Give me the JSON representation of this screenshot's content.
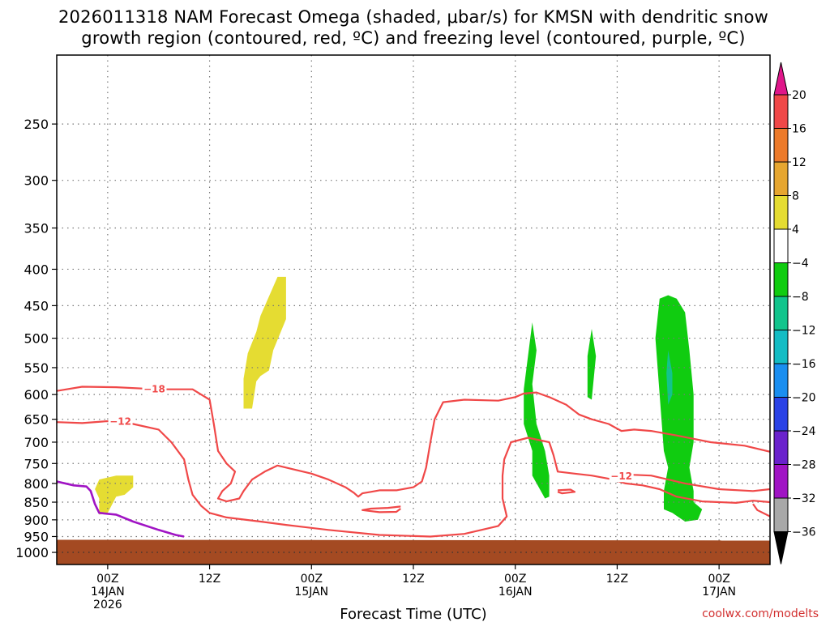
{
  "chart_data": {
    "type": "heatmap",
    "title_lines": [
      "2026011318 NAM Forecast Omega (shaded, μbar/s) for KMSN with dendritic snow",
      "growth region (contoured, red, ºC) and freezing level (contoured, purple, ºC)"
    ],
    "xlabel": "Forecast Time (UTC)",
    "ylabel": "",
    "credit": "coolwx.com/modelts",
    "x_unit": "forecast hours from 2026-01-13 18Z",
    "xlim": [
      0,
      84
    ],
    "ylim_hPa": [
      1040,
      200
    ],
    "y_scale": "log-pressure (inverted)",
    "y_ticks": [
      250,
      300,
      350,
      400,
      450,
      500,
      550,
      600,
      650,
      700,
      750,
      800,
      850,
      900,
      950,
      1000
    ],
    "x_ticks": [
      {
        "x": 6,
        "lines": [
          "00Z",
          "14JAN",
          "2026"
        ]
      },
      {
        "x": 18,
        "lines": [
          "12Z"
        ]
      },
      {
        "x": 30,
        "lines": [
          "00Z",
          "15JAN"
        ]
      },
      {
        "x": 42,
        "lines": [
          "12Z"
        ]
      },
      {
        "x": 54,
        "lines": [
          "00Z",
          "16JAN"
        ]
      },
      {
        "x": 66,
        "lines": [
          "12Z"
        ]
      },
      {
        "x": 78,
        "lines": [
          "00Z",
          "17JAN"
        ]
      }
    ],
    "grid": true,
    "colorbar": {
      "position": "right",
      "labels": [
        "20",
        "16",
        "12",
        "8",
        "4",
        "−4",
        "−8",
        "−12",
        "−16",
        "−20",
        "−24",
        "−28",
        "−32",
        "−36"
      ],
      "bins": [
        {
          "range": [
            20,
            99
          ],
          "color": "#e0168a"
        },
        {
          "range": [
            16,
            20
          ],
          "color": "#f04848"
        },
        {
          "range": [
            12,
            16
          ],
          "color": "#ec7a2a"
        },
        {
          "range": [
            8,
            12
          ],
          "color": "#e6a630"
        },
        {
          "range": [
            4,
            8
          ],
          "color": "#e5dc32"
        },
        {
          "range": [
            -4,
            4
          ],
          "color": "#ffffff"
        },
        {
          "range": [
            -8,
            -4
          ],
          "color": "#10cc10"
        },
        {
          "range": [
            -12,
            -8
          ],
          "color": "#12c48c"
        },
        {
          "range": [
            -16,
            -12
          ],
          "color": "#14bcc4"
        },
        {
          "range": [
            -20,
            -16
          ],
          "color": "#1a8ef0"
        },
        {
          "range": [
            -24,
            -20
          ],
          "color": "#2a42e6"
        },
        {
          "range": [
            -28,
            -24
          ],
          "color": "#6a22cc"
        },
        {
          "range": [
            -32,
            -28
          ],
          "color": "#a014c4"
        },
        {
          "range": [
            -36,
            -32
          ],
          "color": "#a8a8a8"
        },
        {
          "range": [
            -99,
            -36
          ],
          "color": "#000000"
        }
      ]
    },
    "terrain_color": "#a44a22",
    "terrain_top_hPa": [
      [
        0,
        960
      ],
      [
        84,
        962
      ]
    ],
    "omega_regions": [
      {
        "value": 6,
        "color": "#e5dc32",
        "points": [
          [
            5,
            790
          ],
          [
            7,
            780
          ],
          [
            9,
            780
          ],
          [
            9,
            810
          ],
          [
            8,
            830
          ],
          [
            7,
            835
          ],
          [
            6,
            880
          ],
          [
            5,
            885
          ],
          [
            5,
            840
          ],
          [
            4.5,
            815
          ]
        ]
      },
      {
        "value": 6,
        "color": "#e5dc32",
        "points": [
          [
            26,
            410
          ],
          [
            27,
            410
          ],
          [
            27,
            470
          ],
          [
            25.5,
            520
          ],
          [
            25,
            555
          ],
          [
            24,
            565
          ],
          [
            23.5,
            575
          ],
          [
            23,
            628
          ],
          [
            22,
            628
          ],
          [
            22,
            570
          ],
          [
            22.5,
            525
          ],
          [
            23.5,
            490
          ],
          [
            24,
            465
          ]
        ]
      },
      {
        "value": -6,
        "color": "#10cc10",
        "points": [
          [
            56,
            475
          ],
          [
            56.5,
            520
          ],
          [
            56,
            580
          ],
          [
            56.5,
            660
          ],
          [
            57.5,
            720
          ],
          [
            58,
            780
          ],
          [
            58,
            835
          ],
          [
            57.5,
            840
          ],
          [
            56,
            780
          ],
          [
            56,
            720
          ],
          [
            55,
            660
          ],
          [
            55,
            590
          ],
          [
            55.5,
            530
          ]
        ]
      },
      {
        "value": -6,
        "color": "#10cc10",
        "points": [
          [
            63,
            485
          ],
          [
            63.5,
            530
          ],
          [
            63,
            610
          ],
          [
            62.5,
            605
          ],
          [
            62.5,
            530
          ]
        ]
      },
      {
        "value": -6,
        "color": "#10cc10",
        "points": [
          [
            73,
            440
          ],
          [
            74,
            460
          ],
          [
            74.5,
            520
          ],
          [
            75,
            600
          ],
          [
            75,
            700
          ],
          [
            74.5,
            760
          ],
          [
            75,
            820
          ],
          [
            75,
            850
          ],
          [
            76,
            870
          ],
          [
            75.5,
            900
          ],
          [
            74,
            905
          ],
          [
            72.5,
            880
          ],
          [
            71.5,
            870
          ],
          [
            71.5,
            820
          ],
          [
            72,
            760
          ],
          [
            71.5,
            720
          ],
          [
            71,
            600
          ],
          [
            70.5,
            500
          ],
          [
            71,
            440
          ],
          [
            72,
            435
          ]
        ]
      },
      {
        "value": -10,
        "color": "#12c48c",
        "points": [
          [
            72,
            520
          ],
          [
            72.5,
            560
          ],
          [
            72.5,
            600
          ],
          [
            72,
            620
          ],
          [
            71.8,
            560
          ]
        ]
      }
    ],
    "temperature_contours": [
      {
        "label": "-18",
        "color": "#f04848",
        "label_at": [
          11.5,
          590
        ],
        "points": [
          [
            0,
            593
          ],
          [
            3,
            585
          ],
          [
            7,
            586
          ],
          [
            12,
            590
          ],
          [
            16,
            590
          ],
          [
            18,
            610
          ],
          [
            18.5,
            660
          ],
          [
            19,
            720
          ],
          [
            20,
            750
          ],
          [
            21,
            770
          ],
          [
            20.5,
            800
          ],
          [
            19.5,
            820
          ],
          [
            19,
            840
          ],
          [
            20,
            848
          ],
          [
            21.5,
            840
          ],
          [
            22,
            820
          ],
          [
            23,
            790
          ],
          [
            24.5,
            770
          ],
          [
            26,
            755
          ],
          [
            28,
            765
          ],
          [
            30,
            775
          ],
          [
            32,
            790
          ],
          [
            34,
            810
          ],
          [
            35,
            825
          ],
          [
            35.5,
            835
          ],
          [
            36,
            826
          ],
          [
            37,
            822
          ],
          [
            38,
            818
          ],
          [
            40,
            818
          ],
          [
            42,
            810
          ],
          [
            43,
            795
          ],
          [
            43.5,
            760
          ],
          [
            44,
            700
          ],
          [
            44.5,
            650
          ],
          [
            45.5,
            615
          ],
          [
            48,
            610
          ],
          [
            52,
            612
          ],
          [
            54,
            605
          ],
          [
            55,
            598
          ],
          [
            56.5,
            596
          ],
          [
            58,
            605
          ],
          [
            60,
            620
          ],
          [
            61.5,
            640
          ],
          [
            63,
            650
          ],
          [
            65,
            660
          ],
          [
            66.5,
            675
          ],
          [
            68,
            672
          ],
          [
            70,
            675
          ],
          [
            73,
            685
          ],
          [
            77,
            700
          ],
          [
            81,
            708
          ],
          [
            84,
            722
          ]
        ]
      },
      {
        "label": "-12",
        "color": "#f04848",
        "label_at": [
          7.5,
          655
        ],
        "points": [
          [
            0,
            656
          ],
          [
            3,
            658
          ],
          [
            6,
            654
          ],
          [
            9,
            660
          ],
          [
            12,
            672
          ],
          [
            13.5,
            700
          ],
          [
            15,
            740
          ],
          [
            15.5,
            790
          ],
          [
            16,
            830
          ],
          [
            17,
            860
          ],
          [
            18,
            880
          ],
          [
            20,
            893
          ],
          [
            24,
            905
          ],
          [
            27,
            915
          ],
          [
            32,
            930
          ],
          [
            38,
            945
          ],
          [
            44,
            950
          ],
          [
            48,
            942
          ],
          [
            52,
            918
          ],
          [
            53,
            890
          ],
          [
            52.5,
            840
          ],
          [
            52.5,
            780
          ],
          [
            52.7,
            740
          ],
          [
            53.5,
            700
          ],
          [
            55.5,
            690
          ],
          [
            58,
            700
          ],
          [
            58.5,
            730
          ],
          [
            59,
            770
          ],
          [
            61,
            775
          ],
          [
            63,
            780
          ],
          [
            65,
            788
          ],
          [
            67,
            800
          ],
          [
            69,
            805
          ],
          [
            71,
            815
          ],
          [
            73,
            835
          ],
          [
            76,
            848
          ],
          [
            80,
            852
          ],
          [
            82,
            846
          ],
          [
            84,
            850
          ]
        ]
      },
      {
        "label": "-12",
        "color": "#f04848",
        "label_at": [
          66.5,
          782
        ],
        "points": [
          [
            66,
            775
          ],
          [
            68,
            778
          ],
          [
            70,
            780
          ],
          [
            72,
            790
          ],
          [
            74,
            800
          ],
          [
            78,
            815
          ],
          [
            82,
            820
          ],
          [
            84,
            815
          ]
        ]
      },
      {
        "label": "",
        "color": "#f04848",
        "points": [
          [
            40.5,
            862
          ],
          [
            39,
            866
          ],
          [
            37,
            868
          ],
          [
            36,
            872
          ],
          [
            38,
            878
          ],
          [
            40,
            877
          ],
          [
            40.5,
            868
          ]
        ]
      },
      {
        "label": "",
        "color": "#f04848",
        "points": [
          [
            59,
            818
          ],
          [
            60.5,
            816
          ],
          [
            61,
            822
          ],
          [
            59.5,
            826
          ],
          [
            59,
            822
          ]
        ]
      },
      {
        "label": "",
        "color": "#f04848",
        "points": [
          [
            82,
            855
          ],
          [
            82.5,
            872
          ],
          [
            84,
            890
          ]
        ]
      }
    ],
    "freezing_level": {
      "color": "#a014c4",
      "points": [
        [
          0,
          795
        ],
        [
          2,
          805
        ],
        [
          3.5,
          808
        ],
        [
          4,
          820
        ],
        [
          4.5,
          855
        ],
        [
          5,
          880
        ],
        [
          7,
          885
        ],
        [
          9,
          905
        ],
        [
          12,
          930
        ],
        [
          14,
          945
        ],
        [
          15,
          950
        ]
      ]
    }
  }
}
